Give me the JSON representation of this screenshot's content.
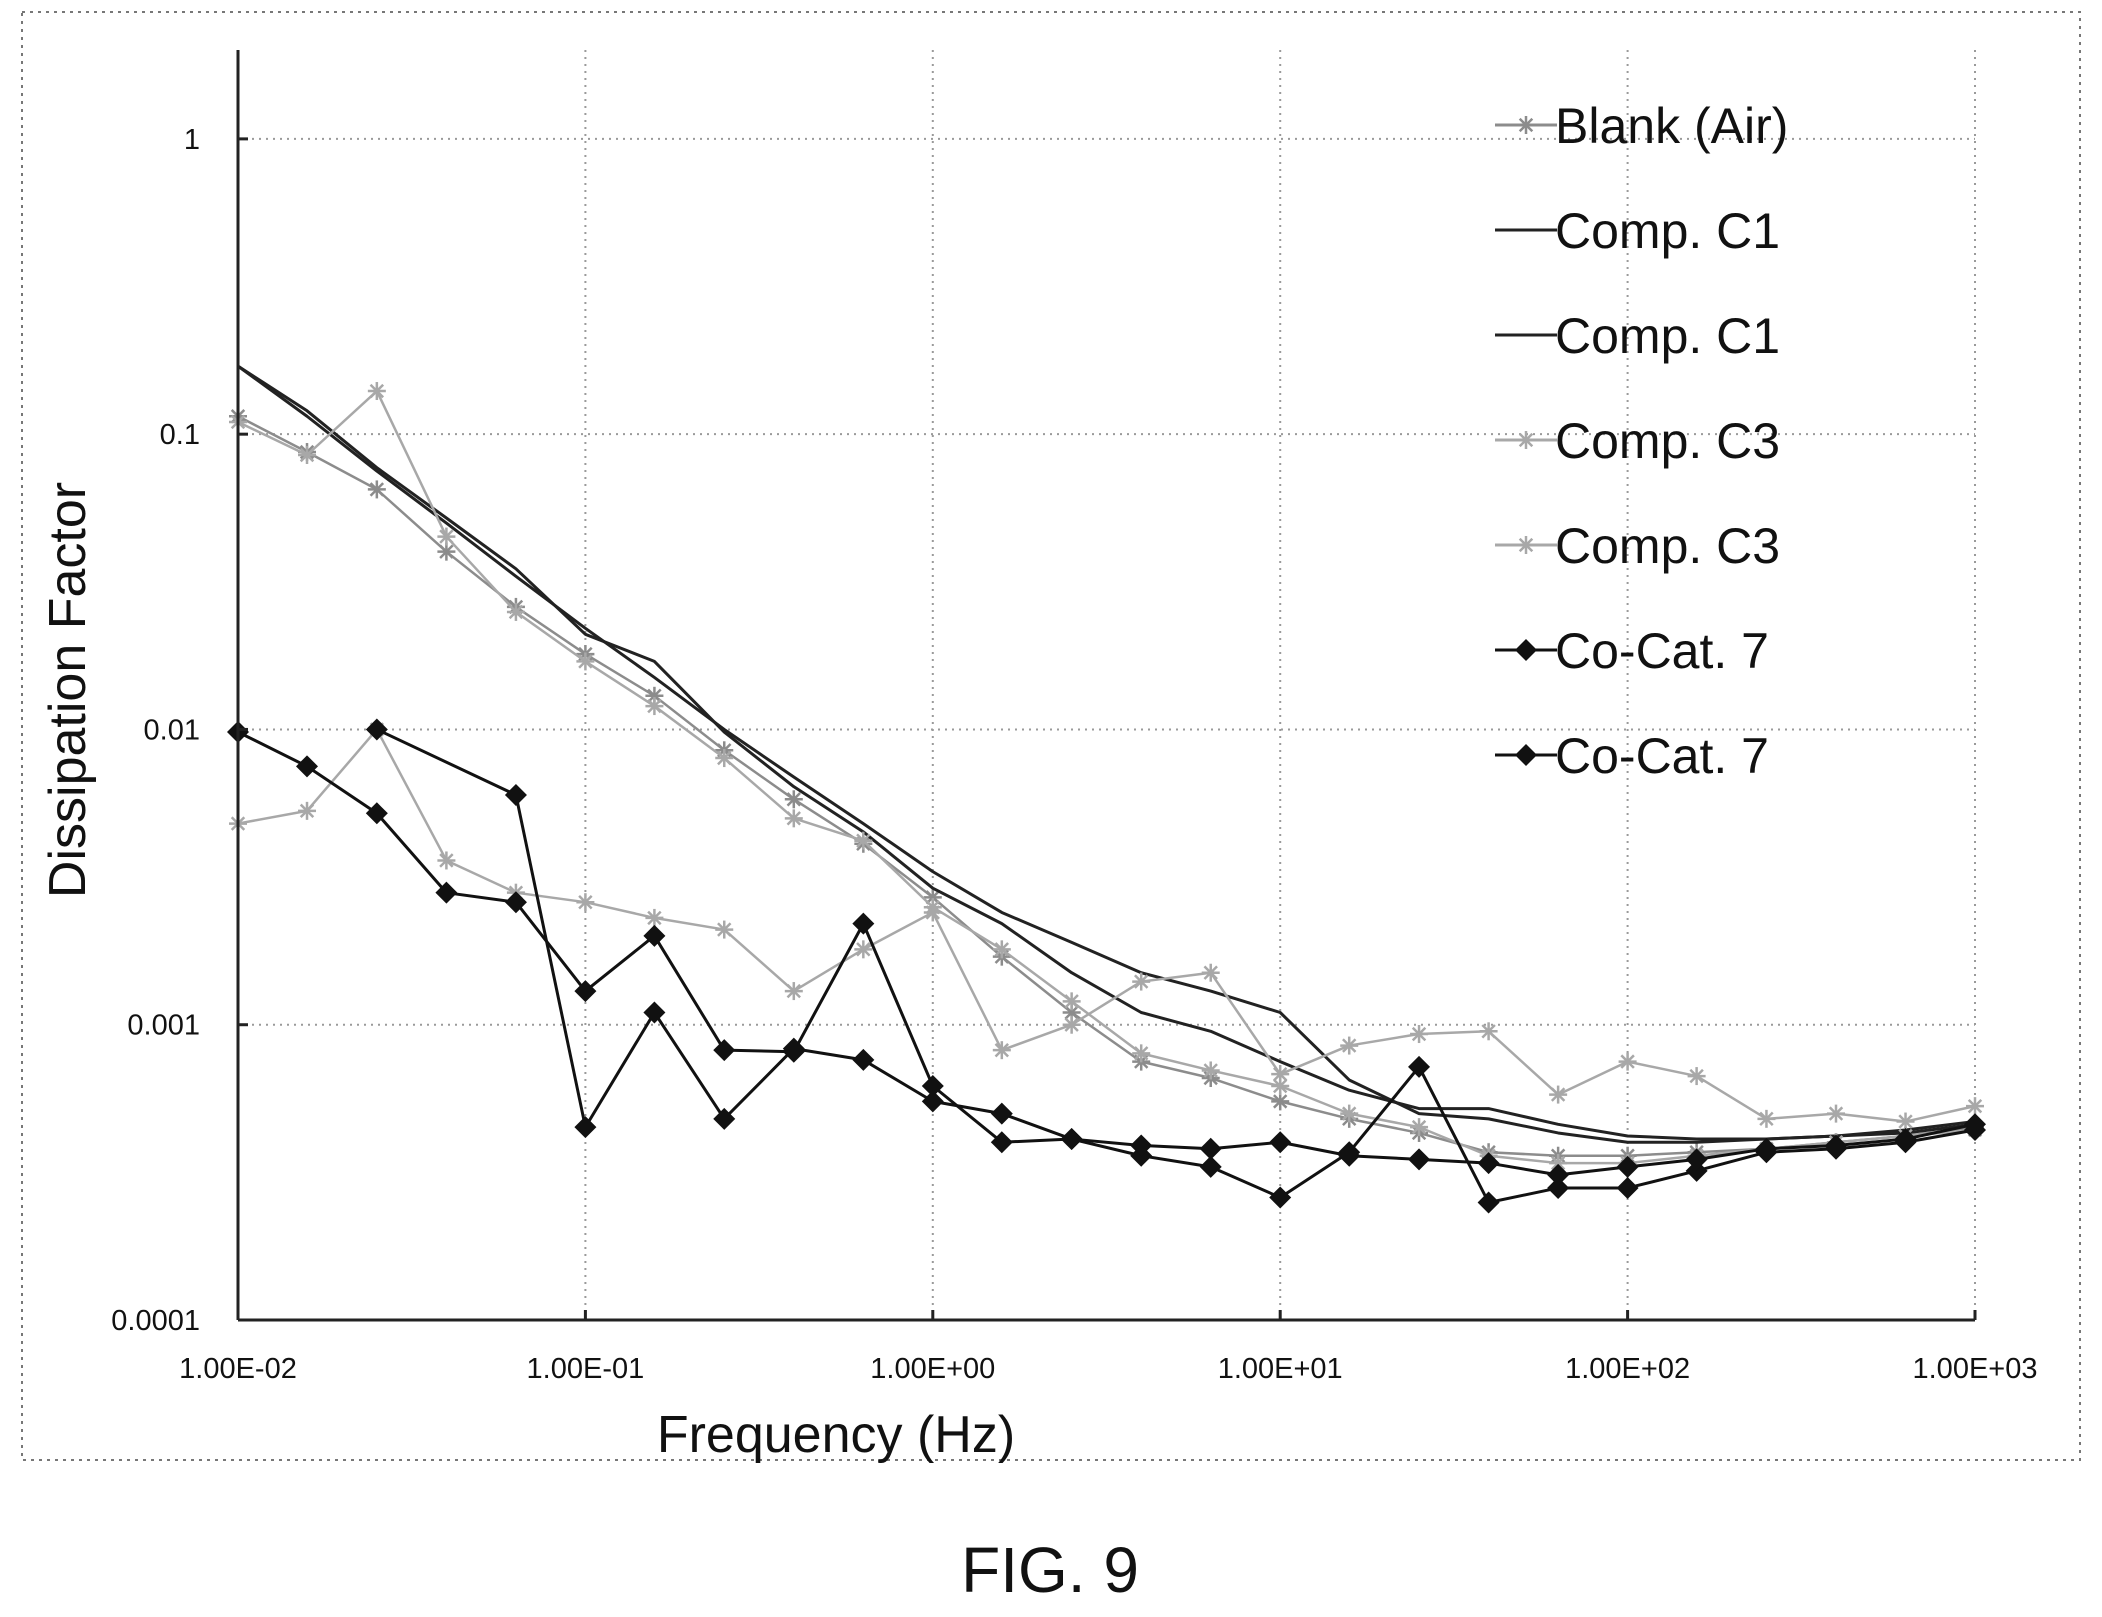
{
  "figure_label": "FIG. 9",
  "colors": {
    "blank": "#8c8c8c",
    "comp_c1": "#222222",
    "comp_c3": "#a8a8a8",
    "co_cat_7": "#111111",
    "grid": "#9a9a9a",
    "axis": "#222222"
  },
  "chart_data": {
    "type": "scatter",
    "title": "",
    "xlabel": "Frequency (Hz)",
    "ylabel": "Dissipation Factor",
    "x_scale": "log",
    "y_scale": "log",
    "xlim": [
      0.01,
      1000
    ],
    "ylim": [
      0.0001,
      2
    ],
    "x_ticks": [
      0.01,
      0.1,
      1,
      10,
      100,
      1000
    ],
    "x_tick_labels": [
      "1.00E-02",
      "1.00E-01",
      "1.00E+00",
      "1.00E+01",
      "1.00E+02",
      "1.00E+03"
    ],
    "y_ticks": [
      0.0001,
      0.001,
      0.01,
      0.1,
      1
    ],
    "y_tick_labels": [
      "0.0001",
      "0.001",
      "0.01",
      "0.1",
      "1"
    ],
    "grid": true,
    "legend_position": "top-right",
    "series": [
      {
        "name": "Blank (Air)",
        "style": "line-star",
        "color_key": "blank",
        "x": [
          0.01,
          0.0158,
          0.0251,
          0.0398,
          0.0631,
          0.1,
          0.158,
          0.251,
          0.398,
          0.631,
          1,
          1.58,
          2.51,
          3.98,
          6.31,
          10,
          15.8,
          25.1,
          39.8,
          63.1,
          100,
          158,
          251,
          398,
          631,
          1000
        ],
        "y": [
          0.115,
          0.087,
          0.065,
          0.04,
          0.026,
          0.018,
          0.013,
          0.0085,
          0.0058,
          0.0041,
          0.0027,
          0.0017,
          0.0011,
          0.00075,
          0.00066,
          0.00055,
          0.00048,
          0.00043,
          0.00037,
          0.00036,
          0.00036,
          0.00037,
          0.00038,
          0.0004,
          0.00042,
          0.00045
        ]
      },
      {
        "name": "Comp. C1",
        "style": "line",
        "color_key": "comp_c1",
        "x": [
          0.01,
          0.0158,
          0.0251,
          0.0398,
          0.0631,
          0.1,
          0.158,
          0.251,
          0.398,
          0.631,
          1,
          1.58,
          2.51,
          3.98,
          6.31,
          10,
          15.8,
          25.1,
          39.8,
          63.1,
          100,
          158,
          251,
          398,
          631,
          1000
        ],
        "y": [
          0.17,
          0.115,
          0.075,
          0.05,
          0.033,
          0.022,
          0.015,
          0.01,
          0.0069,
          0.0048,
          0.0033,
          0.0024,
          0.0019,
          0.0015,
          0.0013,
          0.0011,
          0.00065,
          0.0005,
          0.00048,
          0.00043,
          0.0004,
          0.0004,
          0.00041,
          0.00042,
          0.00044,
          0.00047
        ]
      },
      {
        "name": "Comp. C1",
        "style": "line",
        "color_key": "comp_c1",
        "x": [
          0.01,
          0.0158,
          0.0251,
          0.0398,
          0.0631,
          0.1,
          0.158,
          0.251,
          0.398,
          0.631,
          1,
          1.58,
          2.51,
          3.98,
          6.31,
          10,
          15.8,
          25.1,
          39.8,
          63.1,
          100,
          158,
          251,
          398,
          631,
          1000
        ],
        "y": [
          0.17,
          0.12,
          0.077,
          0.052,
          0.035,
          0.021,
          0.017,
          0.0098,
          0.0064,
          0.0045,
          0.0029,
          0.0022,
          0.0015,
          0.0011,
          0.00095,
          0.00075,
          0.0006,
          0.00052,
          0.00052,
          0.00046,
          0.00042,
          0.00041,
          0.00041,
          0.00042,
          0.00043,
          0.00046
        ]
      },
      {
        "name": "Comp. C3",
        "style": "line-star",
        "color_key": "comp_c3",
        "x": [
          0.01,
          0.0158,
          0.0251,
          0.0398,
          0.0631,
          0.1,
          0.158,
          0.251,
          0.398,
          0.631,
          1,
          1.58,
          2.51,
          3.98,
          6.31,
          10,
          15.8,
          25.1,
          39.8,
          63.1,
          100,
          158,
          251,
          398,
          631,
          1000
        ],
        "y": [
          0.11,
          0.085,
          0.14,
          0.045,
          0.025,
          0.017,
          0.012,
          0.008,
          0.005,
          0.0042,
          0.0025,
          0.0018,
          0.0012,
          0.0008,
          0.0007,
          0.00062,
          0.0005,
          0.00045,
          0.00036,
          0.00034,
          0.00034,
          0.00036,
          0.00038,
          0.0004,
          0.00042,
          0.00044
        ]
      },
      {
        "name": "Comp. C3",
        "style": "line-star",
        "color_key": "comp_c3",
        "x": [
          0.01,
          0.0158,
          0.0251,
          0.0398,
          0.0631,
          0.1,
          0.158,
          0.251,
          0.398,
          0.631,
          1,
          1.58,
          2.51,
          3.98,
          6.31,
          10,
          15.8,
          25.1,
          39.8,
          63.1,
          100,
          158,
          251,
          398,
          631,
          1000
        ],
        "y": [
          0.0048,
          0.0053,
          0.01,
          0.0036,
          0.0028,
          0.0026,
          0.0023,
          0.0021,
          0.0013,
          0.0018,
          0.0024,
          0.00082,
          0.001,
          0.0014,
          0.0015,
          0.00068,
          0.00085,
          0.00093,
          0.00095,
          0.00058,
          0.00075,
          0.00067,
          0.00048,
          0.0005,
          0.00047,
          0.00053
        ]
      },
      {
        "name": "Co-Cat. 7",
        "style": "line-diamond",
        "color_key": "co_cat_7",
        "x": [
          0.01,
          0.0158,
          0.0251,
          0.0398,
          0.0631,
          0.1,
          0.158,
          0.251,
          0.398,
          0.631,
          1,
          1.58,
          2.51,
          3.98,
          6.31,
          10,
          15.8,
          25.1,
          39.8,
          63.1,
          100,
          158,
          251,
          398,
          631,
          1000
        ],
        "y": [
          0.0098,
          0.0075,
          0.0052,
          0.0028,
          0.0026,
          0.0013,
          0.002,
          0.00082,
          0.00081,
          0.0022,
          0.00062,
          0.0004,
          0.00041,
          0.00036,
          0.00033,
          0.00026,
          0.00037,
          0.00072,
          0.00025,
          0.00028,
          0.00028,
          0.00032,
          0.00037,
          0.00038,
          0.0004,
          0.00044
        ]
      },
      {
        "name": "Co-Cat. 7",
        "style": "line-diamond",
        "color_key": "co_cat_7",
        "x": [
          0.0251,
          0.0631,
          0.1,
          0.158,
          0.251,
          0.398,
          0.631,
          1,
          1.58,
          2.51,
          3.98,
          6.31,
          10,
          15.8,
          25.1,
          39.8,
          63.1,
          100,
          158,
          251,
          398,
          631,
          1000
        ],
        "y": [
          0.01,
          0.006,
          0.00045,
          0.0011,
          0.00048,
          0.00083,
          0.00076,
          0.00055,
          0.0005,
          0.00041,
          0.00039,
          0.00038,
          0.0004,
          0.00036,
          0.00035,
          0.00034,
          0.00031,
          0.00033,
          0.00035,
          0.00038,
          0.00039,
          0.00041,
          0.00046
        ]
      }
    ]
  }
}
